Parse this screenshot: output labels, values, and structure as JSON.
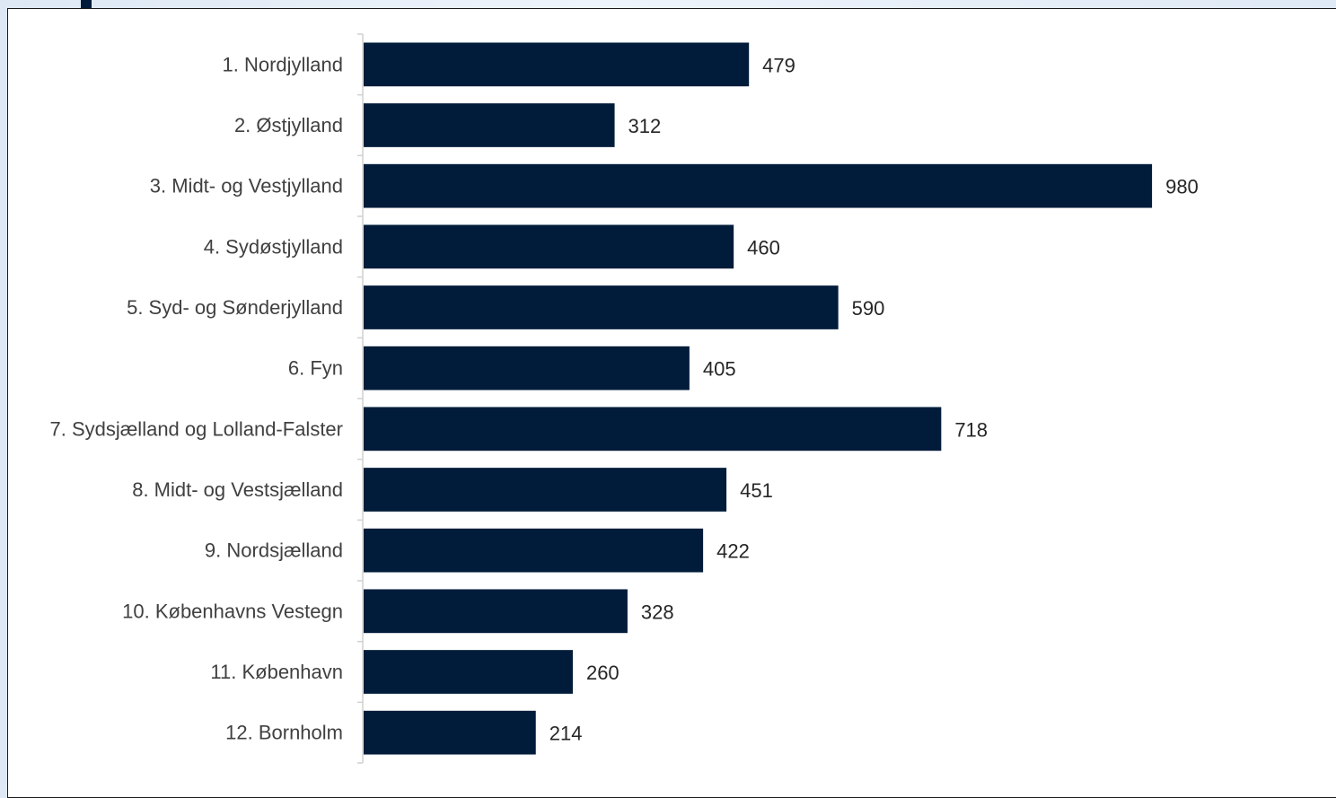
{
  "chart_data": {
    "type": "bar",
    "orientation": "horizontal",
    "categories": [
      "1. Nordjylland",
      "2. Østjylland",
      "3. Midt- og Vestjylland",
      "4. Sydøstjylland",
      "5. Syd- og Sønderjylland",
      "6. Fyn",
      "7. Sydsjælland og Lolland-Falster",
      "8. Midt- og Vestsjælland",
      "9. Nordsjælland",
      "10. Københavns Vestegn",
      "11. København",
      "12. Bornholm"
    ],
    "values": [
      479,
      312,
      980,
      460,
      590,
      405,
      718,
      451,
      422,
      328,
      260,
      214
    ],
    "title": "",
    "xlabel": "",
    "ylabel": "",
    "xlim": [
      0,
      1000
    ],
    "grid": false,
    "legend": "none",
    "colors": {
      "bar": "#001c3a",
      "category_text": "#404040",
      "value_text": "#262626",
      "axis": "#d0d0d0"
    }
  }
}
